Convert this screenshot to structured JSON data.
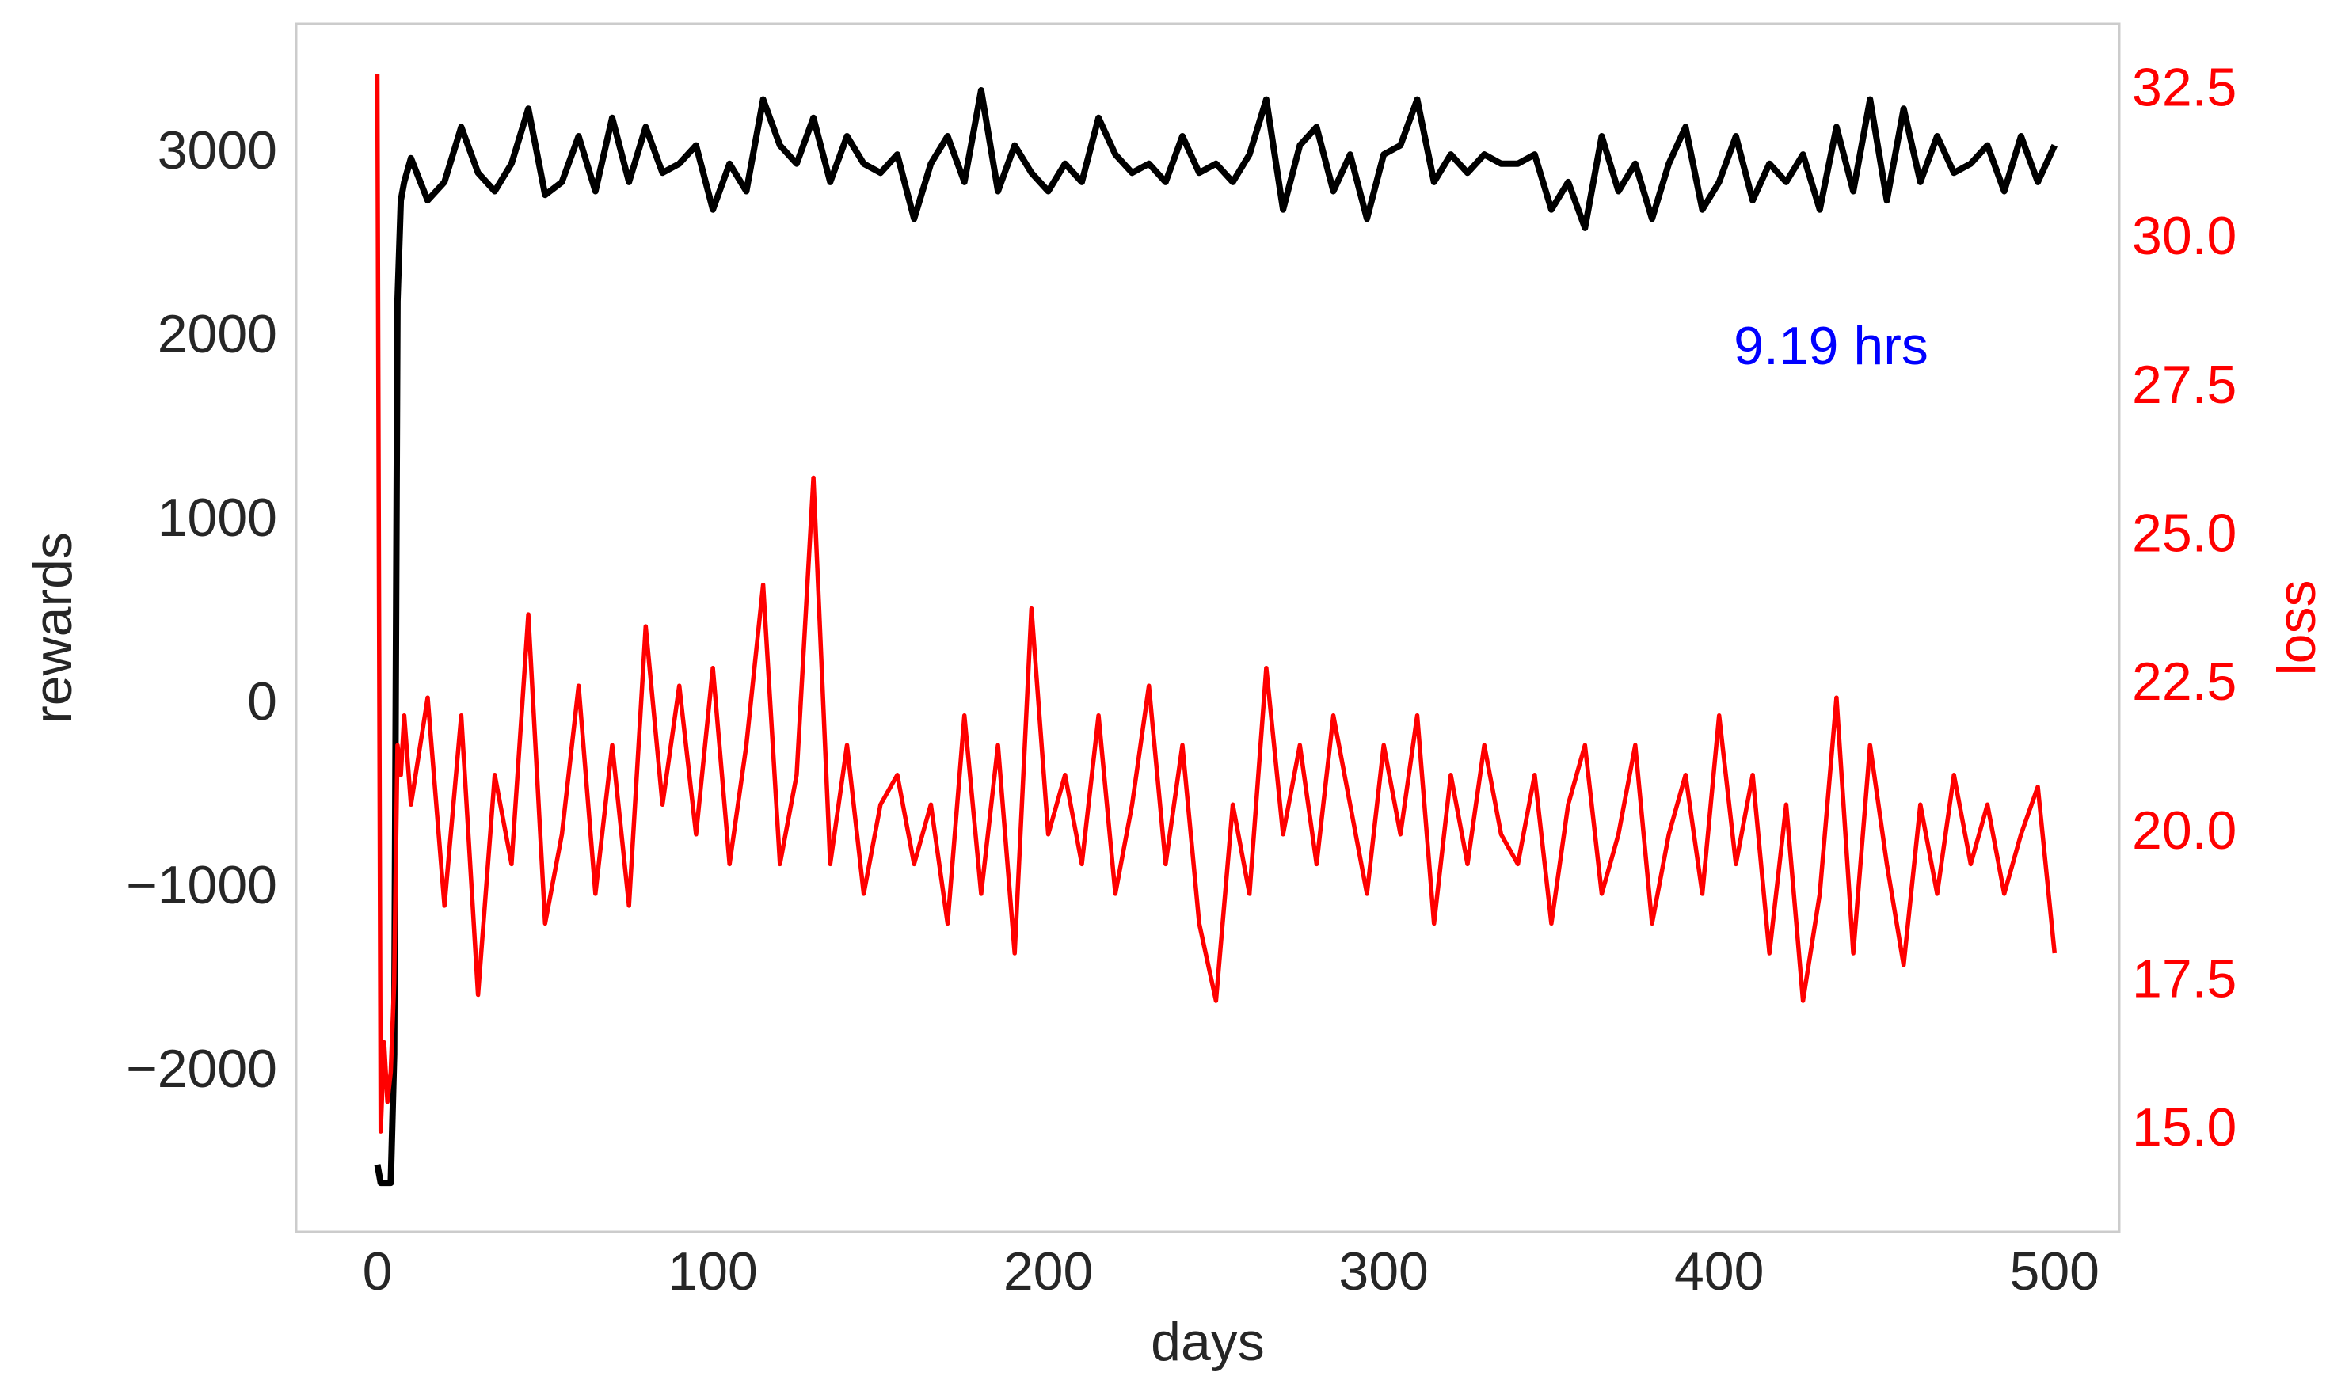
{
  "chart_data": {
    "type": "line",
    "xlabel": "days",
    "ylabel": "rewards",
    "y2label": "loss",
    "annotation": "9.19 hrs",
    "annotation_color": "#0000ff",
    "x": [
      0,
      1,
      2,
      3,
      4,
      5,
      6,
      7,
      8,
      10,
      15,
      20,
      25,
      30,
      35,
      40,
      45,
      50,
      55,
      60,
      65,
      70,
      75,
      80,
      85,
      90,
      95,
      100,
      105,
      110,
      115,
      120,
      125,
      130,
      135,
      140,
      145,
      150,
      155,
      160,
      165,
      170,
      175,
      180,
      185,
      190,
      195,
      200,
      205,
      210,
      215,
      220,
      225,
      230,
      235,
      240,
      245,
      250,
      255,
      260,
      265,
      270,
      275,
      280,
      285,
      290,
      295,
      300,
      305,
      310,
      315,
      320,
      325,
      330,
      335,
      340,
      345,
      350,
      355,
      360,
      365,
      370,
      375,
      380,
      385,
      390,
      395,
      400,
      405,
      410,
      415,
      420,
      425,
      430,
      435,
      440,
      445,
      450,
      455,
      460,
      465,
      470,
      475,
      480,
      485,
      490,
      495,
      500
    ],
    "series": [
      {
        "name": "rewards",
        "color": "#000000",
        "axis": "y",
        "values": [
          -2500,
          -2600,
          -2600,
          -2600,
          -2600,
          -1900,
          2200,
          2750,
          2850,
          2980,
          2750,
          2850,
          3150,
          2900,
          2800,
          2950,
          3250,
          2780,
          2850,
          3100,
          2800,
          3200,
          2850,
          3150,
          2900,
          2950,
          3050,
          2700,
          2950,
          2800,
          3300,
          3050,
          2950,
          3200,
          2850,
          3100,
          2950,
          2900,
          3000,
          2650,
          2950,
          3100,
          2850,
          3350,
          2800,
          3050,
          2900,
          2800,
          2950,
          2850,
          3200,
          3000,
          2900,
          2950,
          2850,
          3100,
          2900,
          2950,
          2850,
          3000,
          3300,
          2700,
          3050,
          3150,
          2800,
          3000,
          2650,
          3000,
          3050,
          3300,
          2850,
          3000,
          2900,
          3000,
          2950,
          2950,
          3000,
          2700,
          2850,
          2600,
          3100,
          2800,
          2950,
          2650,
          2950,
          3150,
          2700,
          2850,
          3100,
          2750,
          2950,
          2850,
          3000,
          2700,
          3150,
          2800,
          3300,
          2750,
          3250,
          2850,
          3100,
          2900,
          2950,
          3050,
          2800,
          3100,
          2850,
          3050
        ]
      },
      {
        "name": "loss",
        "color": "#ff0000",
        "axis": "y2",
        "values": [
          32.8,
          15.0,
          16.5,
          15.5,
          16.0,
          17.5,
          21.5,
          21.0,
          22.0,
          20.5,
          22.3,
          18.8,
          22.0,
          17.3,
          21.0,
          19.5,
          23.7,
          18.5,
          20.0,
          22.5,
          19.0,
          21.5,
          18.8,
          23.5,
          20.5,
          22.5,
          20.0,
          22.8,
          19.5,
          21.5,
          24.2,
          19.5,
          21.0,
          26.0,
          19.5,
          21.5,
          19.0,
          20.5,
          21.0,
          19.5,
          20.5,
          18.5,
          22.0,
          19.0,
          21.5,
          18.0,
          23.8,
          20.0,
          21.0,
          19.5,
          22.0,
          19.0,
          20.5,
          22.5,
          19.5,
          21.5,
          18.5,
          17.2,
          20.5,
          19.0,
          22.8,
          20.0,
          21.5,
          19.5,
          22.0,
          20.5,
          19.0,
          21.5,
          20.0,
          22.0,
          18.5,
          21.0,
          19.5,
          21.5,
          20.0,
          19.5,
          21.0,
          18.5,
          20.5,
          21.5,
          19.0,
          20.0,
          21.5,
          18.5,
          20.0,
          21.0,
          19.0,
          22.0,
          19.5,
          21.0,
          18.0,
          20.5,
          17.2,
          19.0,
          22.3,
          18.0,
          21.5,
          19.5,
          17.8,
          20.5,
          19.0,
          21.0,
          19.5,
          20.5,
          19.0,
          20.0,
          20.8,
          18.0
        ]
      }
    ],
    "xlim": [
      -24.2,
      519.3
    ],
    "xticks": [
      0,
      100,
      200,
      300,
      400,
      500
    ],
    "ylim": [
      -2867,
      3712
    ],
    "yticks": [
      {
        "value": -2000,
        "label": "−2000"
      },
      {
        "value": -1000,
        "label": "−1000"
      },
      0,
      1000,
      2000,
      3000
    ],
    "y2lim": [
      13.31,
      33.64
    ],
    "y2ticks": [
      {
        "value": 15,
        "label": "15.0"
      },
      17.5,
      {
        "value": 20,
        "label": "20.0"
      },
      22.5,
      {
        "value": 25,
        "label": "25.0"
      },
      27.5,
      {
        "value": 30,
        "label": "30.0"
      },
      32.5
    ],
    "y2_color": "#ff0000",
    "grid": false
  }
}
